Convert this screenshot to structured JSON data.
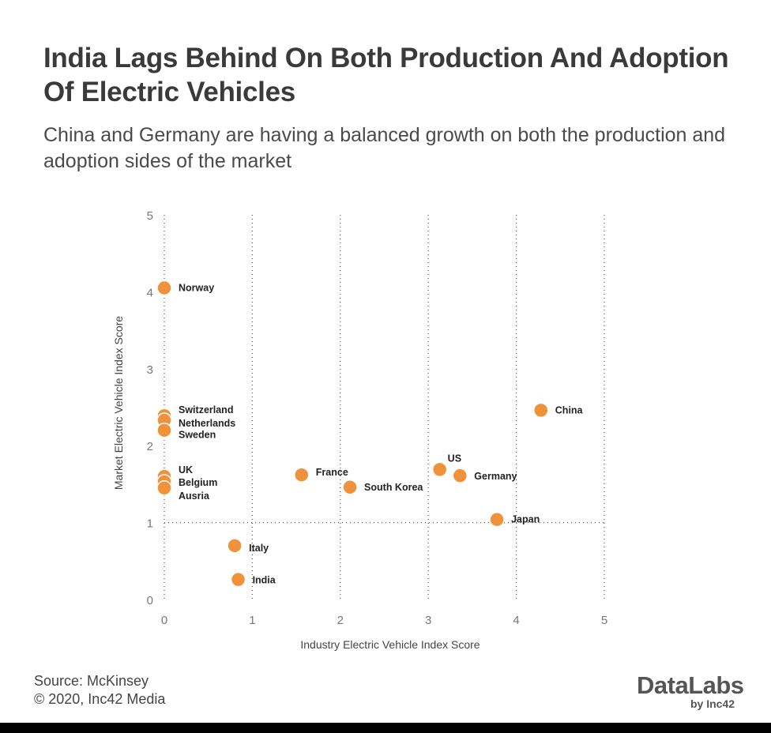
{
  "header": {
    "title": "India Lags Behind On Both Production And Adoption Of Electric Vehicles",
    "subtitle": "China and Germany are having a balanced growth on both the production and adoption sides of the market"
  },
  "chart_data": {
    "type": "scatter",
    "xlabel": "Industry Electric Vehicle Index Score",
    "ylabel": "Market Electric Vehicle Index Score",
    "xlim": [
      0,
      5
    ],
    "ylim": [
      0,
      5
    ],
    "xticks": [
      "0",
      "1",
      "2",
      "3",
      "4",
      "5"
    ],
    "yticks": [
      "0",
      "1",
      "2",
      "3",
      "4",
      "5"
    ],
    "grid": "dotted vertical at x ticks, horizontal at y=1",
    "point_color": "#F0923B",
    "points": [
      {
        "label": "Norway",
        "x": 0,
        "y": 4.05
      },
      {
        "label": "Switzerland",
        "x": 0,
        "y": 2.39
      },
      {
        "label": "Netherlands",
        "x": 0,
        "y": 2.33
      },
      {
        "label": "Sweden",
        "x": 0,
        "y": 2.2
      },
      {
        "label": "UK",
        "x": 0,
        "y": 1.6
      },
      {
        "label": "Belgium",
        "x": 0,
        "y": 1.53
      },
      {
        "label": "Ausria",
        "x": 0,
        "y": 1.45
      },
      {
        "label": "France",
        "x": 1.56,
        "y": 1.62
      },
      {
        "label": "South Korea",
        "x": 2.11,
        "y": 1.46
      },
      {
        "label": "US",
        "x": 3.13,
        "y": 1.69
      },
      {
        "label": "Germany",
        "x": 3.36,
        "y": 1.61
      },
      {
        "label": "China",
        "x": 4.28,
        "y": 2.46
      },
      {
        "label": "Japan",
        "x": 3.78,
        "y": 1.04
      },
      {
        "label": "Italy",
        "x": 0.8,
        "y": 0.7
      },
      {
        "label": "India",
        "x": 0.84,
        "y": 0.26
      }
    ]
  },
  "footer": {
    "source": "Source: McKinsey",
    "copyright": "© 2020, Inc42 Media",
    "logo_main": "DataLabs",
    "logo_sub": "by Inc42"
  }
}
